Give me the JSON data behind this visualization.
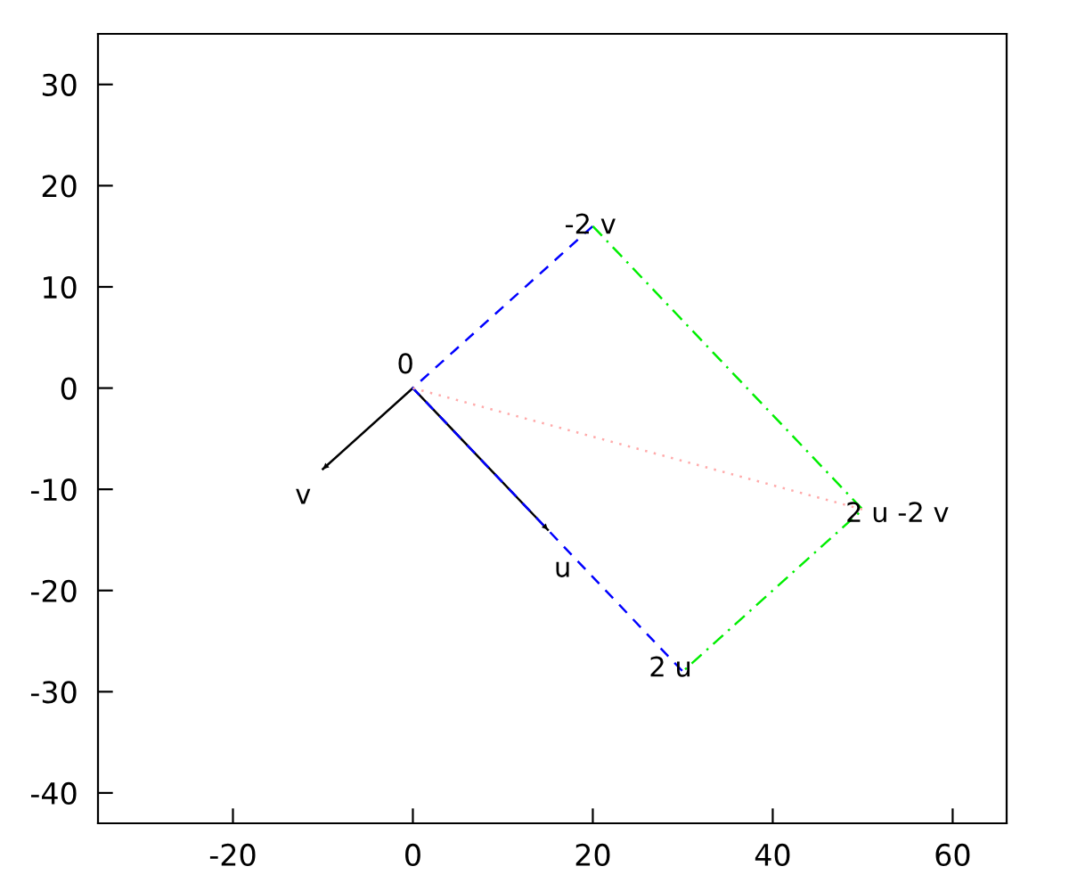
{
  "chart_data": {
    "type": "line",
    "xlim": [
      -35,
      66
    ],
    "ylim": [
      -43,
      35
    ],
    "xticks": [
      -20,
      0,
      20,
      40,
      60
    ],
    "yticks": [
      -40,
      -30,
      -20,
      -10,
      0,
      10,
      20,
      30
    ],
    "grid": false,
    "series": [
      {
        "color": "#000000",
        "line_style": "solid",
        "x": [
          0,
          -10
        ],
        "values": [
          0,
          -8
        ]
      },
      {
        "color": "#000000",
        "line_style": "solid",
        "x": [
          0,
          15
        ],
        "values": [
          0,
          -14
        ]
      },
      {
        "color": "#0000ff",
        "line_style": "dashed",
        "x": [
          20,
          0,
          30
        ],
        "values": [
          16,
          0,
          -28
        ]
      },
      {
        "color": "#00ee00",
        "line_style": "dashdot",
        "x": [
          20,
          50,
          30
        ],
        "values": [
          16,
          -12,
          -28
        ]
      },
      {
        "color": "#ffaaaa",
        "line_style": "dotted",
        "x": [
          0,
          50
        ],
        "values": [
          0,
          -12
        ]
      }
    ],
    "annotations": [
      {
        "text": "0",
        "x": 0,
        "y": 0
      },
      {
        "text": "v",
        "x": -10,
        "y": -8
      },
      {
        "text": "u",
        "x": 15,
        "y": -14
      },
      {
        "text": "2 u",
        "x": 30,
        "y": -28
      },
      {
        "text": "-2 v",
        "x": 20,
        "y": 16
      },
      {
        "text": "2 u -2 v",
        "x": 50,
        "y": -12
      }
    ]
  }
}
